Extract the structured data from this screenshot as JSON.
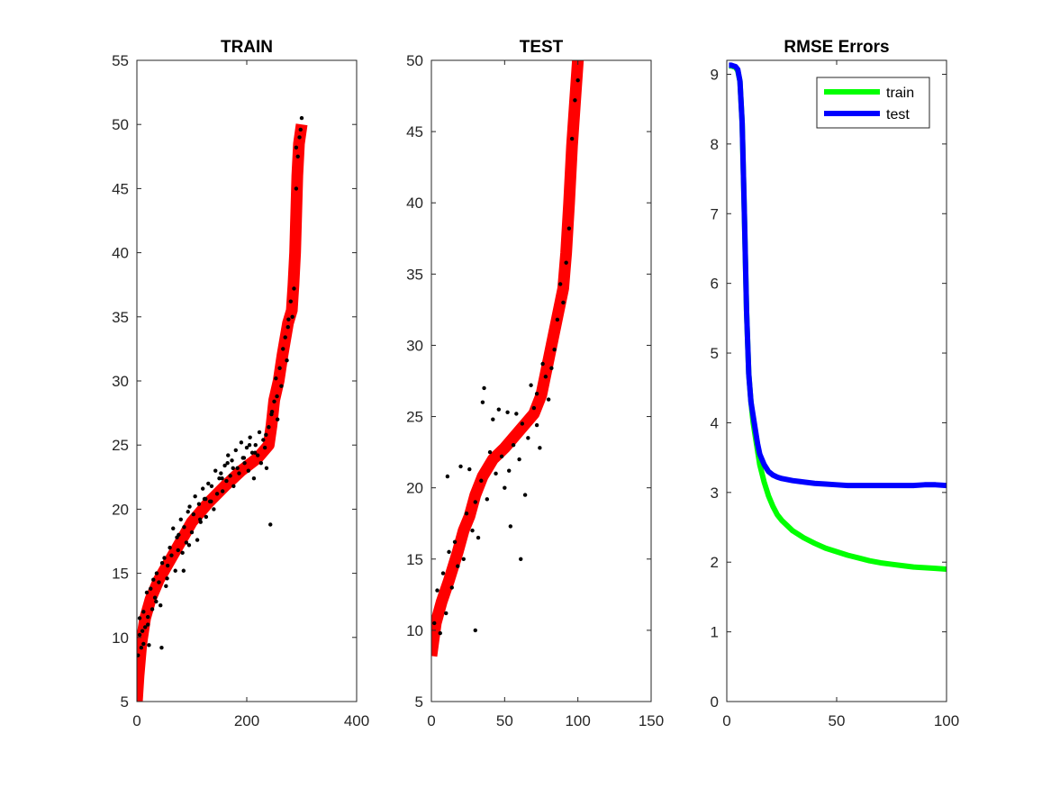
{
  "chart_data": [
    {
      "type": "scatter",
      "title": "TRAIN",
      "xlim": [
        0,
        400
      ],
      "ylim": [
        5,
        55
      ],
      "xticks": [
        0,
        200,
        400
      ],
      "yticks": [
        5,
        10,
        15,
        20,
        25,
        30,
        35,
        40,
        45,
        50,
        55
      ],
      "xtick_labels": [
        "0",
        "200",
        "400"
      ],
      "ytick_labels": [
        "5",
        "10",
        "15",
        "20",
        "25",
        "30",
        "35",
        "40",
        "45",
        "50",
        "55"
      ],
      "series": [
        {
          "kind": "line",
          "color": "#ff0000",
          "x": [
            0,
            3,
            8,
            15,
            25,
            40,
            60,
            80,
            100,
            130,
            160,
            190,
            220,
            240,
            245,
            250,
            258,
            265,
            275,
            282,
            285,
            288,
            290,
            292,
            295,
            300
          ],
          "y": [
            5.0,
            7.0,
            9.5,
            11.5,
            13.0,
            14.5,
            16.0,
            17.5,
            19.0,
            20.5,
            21.8,
            23.0,
            24.0,
            25.0,
            26.5,
            28.5,
            30.0,
            32.0,
            34.5,
            35.5,
            37.5,
            40.0,
            43.0,
            46.0,
            48.5,
            50.0
          ]
        },
        {
          "kind": "points",
          "color": "#000000",
          "x": [
            2,
            5,
            8,
            10,
            12,
            15,
            18,
            20,
            22,
            25,
            28,
            30,
            33,
            36,
            40,
            43,
            46,
            50,
            53,
            56,
            60,
            63,
            66,
            70,
            73,
            76,
            80,
            83,
            86,
            90,
            93,
            96,
            100,
            103,
            106,
            110,
            113,
            116,
            120,
            123,
            126,
            130,
            133,
            136,
            140,
            143,
            146,
            150,
            153,
            156,
            160,
            163,
            166,
            170,
            173,
            176,
            180,
            183,
            186,
            190,
            193,
            196,
            200,
            203,
            206,
            210,
            213,
            216,
            220,
            223,
            226,
            230,
            233,
            236,
            240,
            243,
            246,
            250,
            253,
            256,
            260,
            263,
            266,
            270,
            273,
            276,
            280,
            283,
            286,
            290,
            293,
            296,
            300,
            5,
            20,
            35,
            55,
            75,
            95,
            115,
            135,
            155,
            175,
            195,
            215,
            235,
            255,
            275,
            290,
            298,
            12,
            45,
            85,
            125,
            165,
            205,
            245
          ],
          "y": [
            8.6,
            11.5,
            9.2,
            10.5,
            12.0,
            10.8,
            13.5,
            11.6,
            9.4,
            13.8,
            12.2,
            14.5,
            13.1,
            15.0,
            14.3,
            12.5,
            15.8,
            16.2,
            14.0,
            15.6,
            17.0,
            16.4,
            18.5,
            15.2,
            17.8,
            18.0,
            19.2,
            16.6,
            18.6,
            17.4,
            19.8,
            20.2,
            18.2,
            19.6,
            21.0,
            17.6,
            20.4,
            19.0,
            21.6,
            20.8,
            19.4,
            22.0,
            20.6,
            21.8,
            20.0,
            23.0,
            21.2,
            22.4,
            22.8,
            21.4,
            23.4,
            22.2,
            24.2,
            22.6,
            23.8,
            21.8,
            24.6,
            23.2,
            22.8,
            25.2,
            24.0,
            23.6,
            24.8,
            23.0,
            25.6,
            24.4,
            22.4,
            25.0,
            24.2,
            26.0,
            23.6,
            25.4,
            24.8,
            23.2,
            26.4,
            18.8,
            27.6,
            28.4,
            30.2,
            27.0,
            31.0,
            29.6,
            32.5,
            33.4,
            31.6,
            34.8,
            36.2,
            35.0,
            37.2,
            45.0,
            47.5,
            49.0,
            50.5,
            10.2,
            11.0,
            12.8,
            14.6,
            16.8,
            17.2,
            19.2,
            20.6,
            22.4,
            23.2,
            24.0,
            24.4,
            25.8,
            28.8,
            34.2,
            48.2,
            49.6,
            9.5,
            9.2,
            15.2,
            20.8,
            23.6,
            25.0,
            27.4
          ]
        }
      ]
    },
    {
      "type": "scatter",
      "title": "TEST",
      "xlim": [
        0,
        150
      ],
      "ylim": [
        5,
        50
      ],
      "xticks": [
        0,
        50,
        100,
        150
      ],
      "yticks": [
        5,
        10,
        15,
        20,
        25,
        30,
        35,
        40,
        45,
        50
      ],
      "xtick_labels": [
        "0",
        "50",
        "100",
        "150"
      ],
      "ytick_labels": [
        "5",
        "10",
        "15",
        "20",
        "25",
        "30",
        "35",
        "40",
        "45",
        "50"
      ],
      "series": [
        {
          "kind": "line",
          "color": "#ff0000",
          "x": [
            0,
            3,
            7,
            12,
            18,
            22,
            26,
            30,
            35,
            42,
            50,
            60,
            70,
            75,
            78,
            82,
            86,
            90,
            92,
            94,
            96,
            98,
            100
          ],
          "y": [
            8.2,
            10.5,
            12.0,
            13.5,
            15.5,
            17.0,
            18.0,
            19.5,
            20.8,
            22.0,
            22.8,
            24.0,
            25.2,
            26.5,
            28.0,
            30.0,
            32.0,
            34.0,
            36.5,
            40.0,
            44.0,
            47.0,
            50.0
          ]
        },
        {
          "kind": "points",
          "color": "#000000",
          "x": [
            2,
            4,
            6,
            8,
            10,
            12,
            14,
            16,
            18,
            20,
            22,
            24,
            26,
            28,
            30,
            32,
            34,
            36,
            38,
            40,
            42,
            44,
            46,
            48,
            50,
            52,
            54,
            56,
            58,
            60,
            62,
            64,
            66,
            68,
            70,
            72,
            74,
            76,
            78,
            80,
            82,
            84,
            86,
            88,
            90,
            92,
            94,
            96,
            98,
            100,
            11,
            35,
            61,
            30,
            53,
            72
          ],
          "y": [
            10.5,
            12.8,
            9.8,
            14.0,
            11.2,
            15.5,
            13.0,
            16.2,
            14.5,
            21.5,
            15.0,
            18.2,
            21.3,
            17.0,
            19.0,
            16.5,
            20.5,
            27.0,
            19.2,
            22.5,
            24.8,
            21.0,
            25.5,
            22.2,
            20.0,
            25.3,
            17.3,
            23.0,
            25.2,
            22.0,
            24.5,
            19.5,
            23.5,
            27.2,
            25.6,
            26.6,
            22.8,
            28.7,
            27.8,
            26.2,
            28.4,
            29.7,
            31.8,
            34.3,
            33.0,
            35.8,
            38.2,
            44.5,
            47.2,
            48.6,
            20.8,
            26.0,
            15.0,
            10.0,
            21.2,
            24.4
          ]
        }
      ]
    },
    {
      "type": "line",
      "title": "RMSE Errors",
      "xlim": [
        0,
        100
      ],
      "ylim": [
        0,
        9.2
      ],
      "xticks": [
        0,
        50,
        100
      ],
      "yticks": [
        0,
        1,
        2,
        3,
        4,
        5,
        6,
        7,
        8,
        9
      ],
      "xtick_labels": [
        "0",
        "50",
        "100"
      ],
      "ytick_labels": [
        "0",
        "1",
        "2",
        "3",
        "4",
        "5",
        "6",
        "7",
        "8",
        "9"
      ],
      "legend": {
        "position": "top-right",
        "entries": [
          "train",
          "test"
        ]
      },
      "series": [
        {
          "name": "train",
          "color": "#00ff00",
          "x": [
            1,
            2,
            3,
            4,
            5,
            6,
            7,
            8,
            9,
            10,
            11,
            12,
            13,
            14,
            15,
            17,
            19,
            21,
            23,
            25,
            30,
            35,
            40,
            45,
            50,
            55,
            60,
            65,
            70,
            75,
            80,
            85,
            90,
            95,
            100
          ],
          "y": [
            9.12,
            9.12,
            9.11,
            9.1,
            9.05,
            8.9,
            8.3,
            7.0,
            5.6,
            4.7,
            4.3,
            4.0,
            3.8,
            3.6,
            3.4,
            3.15,
            2.95,
            2.8,
            2.68,
            2.6,
            2.45,
            2.35,
            2.27,
            2.2,
            2.15,
            2.1,
            2.06,
            2.02,
            1.99,
            1.97,
            1.95,
            1.93,
            1.92,
            1.91,
            1.9
          ]
        },
        {
          "name": "test",
          "color": "#0000ff",
          "x": [
            1,
            2,
            3,
            4,
            5,
            6,
            7,
            8,
            9,
            10,
            11,
            12,
            13,
            14,
            15,
            17,
            19,
            21,
            23,
            25,
            30,
            35,
            40,
            45,
            50,
            55,
            60,
            65,
            70,
            75,
            80,
            85,
            90,
            95,
            100
          ],
          "y": [
            9.13,
            9.13,
            9.12,
            9.11,
            9.07,
            8.9,
            8.3,
            7.0,
            5.6,
            4.7,
            4.3,
            4.1,
            3.9,
            3.7,
            3.55,
            3.4,
            3.3,
            3.25,
            3.22,
            3.2,
            3.17,
            3.15,
            3.13,
            3.12,
            3.11,
            3.1,
            3.1,
            3.1,
            3.1,
            3.1,
            3.1,
            3.1,
            3.11,
            3.11,
            3.1
          ]
        }
      ]
    }
  ]
}
